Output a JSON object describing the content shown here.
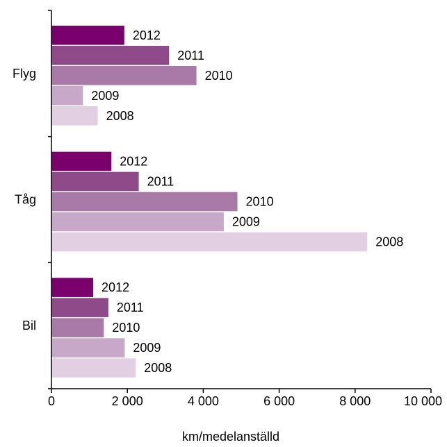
{
  "chart_data": {
    "type": "bar",
    "orientation": "horizontal",
    "title": "",
    "xlabel": "km/medelanställd",
    "ylabel": "",
    "xlim": [
      0,
      10000
    ],
    "x_ticks": [
      0,
      2000,
      4000,
      6000,
      8000,
      10000
    ],
    "x_tick_labels": [
      "0",
      "2 000",
      "4 000",
      "6 000",
      "8 000",
      "10 000"
    ],
    "grid": false,
    "legend": "none",
    "categories": [
      "Flyg",
      "Tåg",
      "Bil"
    ],
    "series": [
      {
        "name": "2012",
        "color": "#7a006e",
        "values": [
          1920,
          1580,
          1100
        ]
      },
      {
        "name": "2011",
        "color": "#8f4a8a",
        "values": [
          3100,
          2300,
          1500
        ]
      },
      {
        "name": "2010",
        "color": "#a97aa7",
        "values": [
          3820,
          4900,
          1380
        ]
      },
      {
        "name": "2009",
        "color": "#c8a8c8",
        "values": [
          830,
          4540,
          1930
        ]
      },
      {
        "name": "2008",
        "color": "#e2d0e2",
        "values": [
          1220,
          8320,
          2220
        ]
      }
    ]
  }
}
